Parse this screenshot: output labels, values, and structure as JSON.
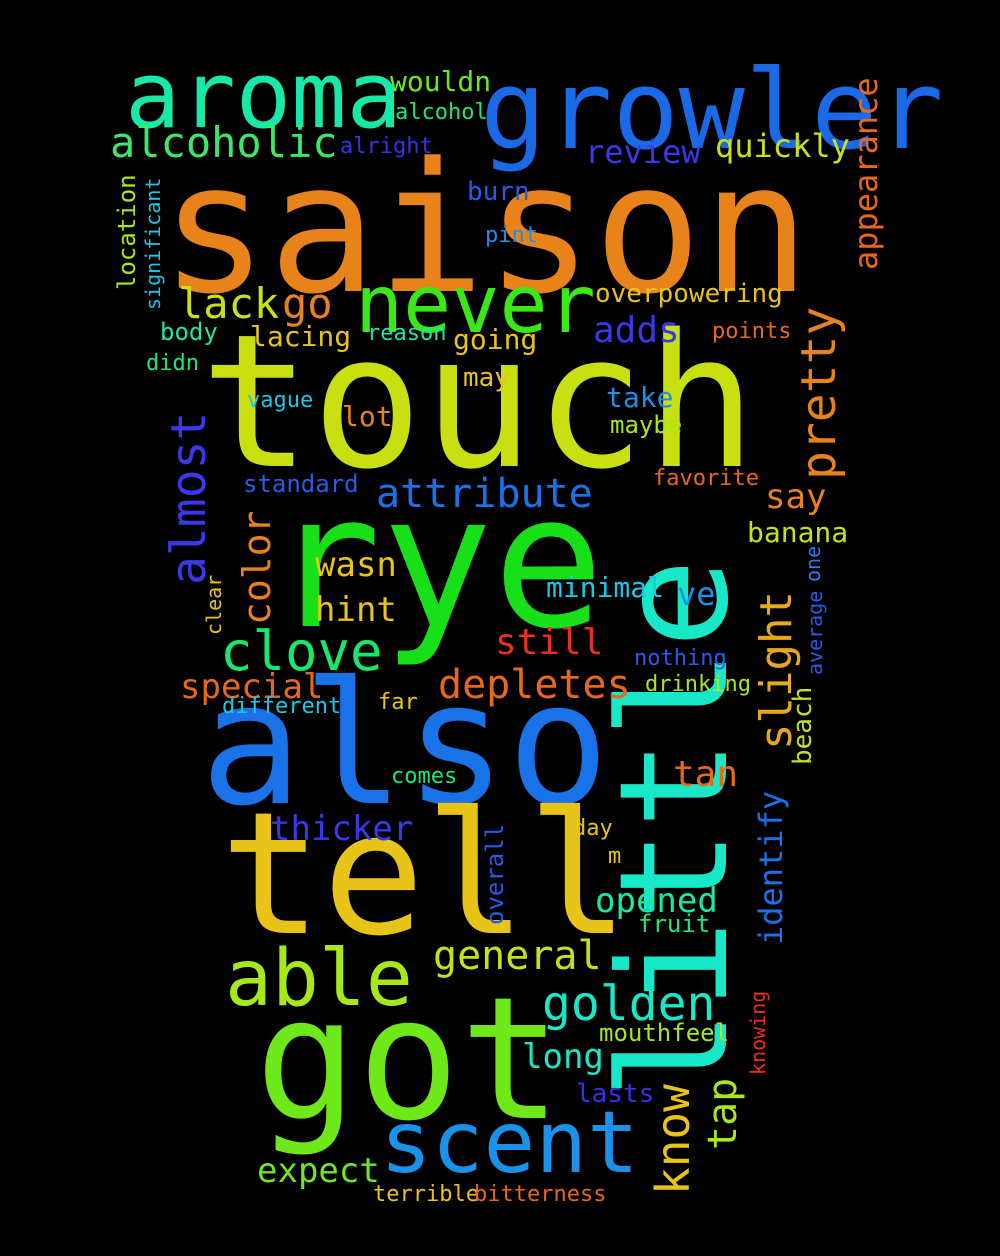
{
  "words": [
    {
      "id": "saison",
      "text": "saison",
      "color": "#e8821a"
    },
    {
      "id": "touch",
      "text": "touch",
      "color": "#c8e012"
    },
    {
      "id": "rye",
      "text": "rye",
      "color": "#18e018"
    },
    {
      "id": "also",
      "text": "also",
      "color": "#1a72e8"
    },
    {
      "id": "tell",
      "text": "tell",
      "color": "#e8c418"
    },
    {
      "id": "got",
      "text": "got",
      "color": "#6ee818"
    },
    {
      "id": "little",
      "text": "little",
      "color": "#18e8c8"
    },
    {
      "id": "growler",
      "text": "growler",
      "color": "#1a6ae8"
    },
    {
      "id": "aroma",
      "text": "aroma",
      "color": "#18e8a8"
    },
    {
      "id": "never",
      "text": "never",
      "color": "#3ae818"
    },
    {
      "id": "scent",
      "text": "scent",
      "color": "#1a92e8"
    },
    {
      "id": "able",
      "text": "able",
      "color": "#a8e818"
    },
    {
      "id": "alcoholic",
      "text": "alcoholic",
      "color": "#3ae86a"
    },
    {
      "id": "wouldn",
      "text": "wouldn",
      "color": "#6ae818"
    },
    {
      "id": "alcohol",
      "text": "alcohol",
      "color": "#18e878"
    },
    {
      "id": "alright",
      "text": "alright",
      "color": "#3a30e8"
    },
    {
      "id": "review",
      "text": "review",
      "color": "#3a38e8"
    },
    {
      "id": "quickly",
      "text": "quickly",
      "color": "#c8e018"
    },
    {
      "id": "appearance",
      "text": "appearance",
      "color": "#e8681a"
    },
    {
      "id": "burn",
      "text": "burn",
      "color": "#2a5ae8"
    },
    {
      "id": "pint",
      "text": "pint",
      "color": "#1a92e8"
    },
    {
      "id": "location",
      "text": "location",
      "color": "#a8e818"
    },
    {
      "id": "significant",
      "text": "significant",
      "color": "#18c8e8"
    },
    {
      "id": "lack",
      "text": "lack",
      "color": "#c8e018"
    },
    {
      "id": "go",
      "text": "go",
      "color": "#e8821a"
    },
    {
      "id": "pretty",
      "text": "pretty",
      "color": "#e8821a"
    },
    {
      "id": "overpowering",
      "text": "overpowering",
      "color": "#e8c418"
    },
    {
      "id": "body",
      "text": "body",
      "color": "#18e8a8"
    },
    {
      "id": "lacing",
      "text": "lacing",
      "color": "#e8c418"
    },
    {
      "id": "reason",
      "text": "reason",
      "color": "#18e8a8"
    },
    {
      "id": "adds",
      "text": "adds",
      "color": "#3a38e8"
    },
    {
      "id": "points",
      "text": "points",
      "color": "#e8681a"
    },
    {
      "id": "going",
      "text": "going",
      "color": "#e8c418"
    },
    {
      "id": "didn",
      "text": "didn",
      "color": "#18e878"
    },
    {
      "id": "may",
      "text": "may",
      "color": "#e8c418"
    },
    {
      "id": "almost",
      "text": "almost",
      "color": "#3a38e8"
    },
    {
      "id": "vague",
      "text": "vague",
      "color": "#18c8e8"
    },
    {
      "id": "lot",
      "text": "lot",
      "color": "#e8821a"
    },
    {
      "id": "take",
      "text": "take",
      "color": "#1a92e8"
    },
    {
      "id": "maybe",
      "text": "maybe",
      "color": "#a8e818"
    },
    {
      "id": "standard",
      "text": "standard",
      "color": "#2a5ae8"
    },
    {
      "id": "attribute",
      "text": "attribute",
      "color": "#1a72e8"
    },
    {
      "id": "favorite",
      "text": "favorite",
      "color": "#e8681a"
    },
    {
      "id": "say",
      "text": "say",
      "color": "#e8821a"
    },
    {
      "id": "color",
      "text": "color",
      "color": "#e8821a"
    },
    {
      "id": "banana",
      "text": "banana",
      "color": "#c8e018"
    },
    {
      "id": "wasn",
      "text": "wasn",
      "color": "#e8c418"
    },
    {
      "id": "slight",
      "text": "slight",
      "color": "#e8a818"
    },
    {
      "id": "clove",
      "text": "clove",
      "color": "#18e86a"
    },
    {
      "id": "hint",
      "text": "hint",
      "color": "#e8c418"
    },
    {
      "id": "minimal",
      "text": "minimal",
      "color": "#18c8e8"
    },
    {
      "id": "ve",
      "text": "ve",
      "color": "#1a92e8"
    },
    {
      "id": "one",
      "text": "one",
      "color": "#2a7ae8"
    },
    {
      "id": "clear",
      "text": "clear",
      "color": "#e8c418"
    },
    {
      "id": "average",
      "text": "average",
      "color": "#2a5ae8"
    },
    {
      "id": "still",
      "text": "still",
      "color": "#e8301a"
    },
    {
      "id": "nothing",
      "text": "nothing",
      "color": "#2a5ae8"
    },
    {
      "id": "special",
      "text": "special",
      "color": "#e8681a"
    },
    {
      "id": "depletes",
      "text": "depletes",
      "color": "#e8681a"
    },
    {
      "id": "drinking",
      "text": "drinking",
      "color": "#a8e818"
    },
    {
      "id": "different",
      "text": "different",
      "color": "#18c8e8"
    },
    {
      "id": "far",
      "text": "far",
      "color": "#e8c418"
    },
    {
      "id": "beach",
      "text": "beach",
      "color": "#c8e018"
    },
    {
      "id": "tan",
      "text": "tan",
      "color": "#e8681a"
    },
    {
      "id": "comes",
      "text": "comes",
      "color": "#18e878"
    },
    {
      "id": "identify",
      "text": "identify",
      "color": "#1a72e8"
    },
    {
      "id": "thicker",
      "text": "thicker",
      "color": "#3a38e8"
    },
    {
      "id": "day",
      "text": "day",
      "color": "#e8c418"
    },
    {
      "id": "overall",
      "text": "overall",
      "color": "#2a5ae8"
    },
    {
      "id": "m",
      "text": "m",
      "color": "#e8c418"
    },
    {
      "id": "opened",
      "text": "opened",
      "color": "#18e8a8"
    },
    {
      "id": "fruit",
      "text": "fruit",
      "color": "#18e878"
    },
    {
      "id": "general",
      "text": "general",
      "color": "#c8e018"
    },
    {
      "id": "golden",
      "text": "golden",
      "color": "#18e8c8"
    },
    {
      "id": "knowing",
      "text": "knowing",
      "color": "#e8301a"
    },
    {
      "id": "mouthfeel",
      "text": "mouthfeel",
      "color": "#a8e818"
    },
    {
      "id": "know",
      "text": "know",
      "color": "#e8c418"
    },
    {
      "id": "long",
      "text": "long",
      "color": "#18e8c8"
    },
    {
      "id": "tap",
      "text": "tap",
      "color": "#a8e818"
    },
    {
      "id": "lasts",
      "text": "lasts",
      "color": "#3a30e8"
    },
    {
      "id": "expect",
      "text": "expect",
      "color": "#6ee818"
    },
    {
      "id": "terrible",
      "text": "terrible",
      "color": "#e8c418"
    },
    {
      "id": "bitterness",
      "text": "bitterness",
      "color": "#e8681a"
    }
  ]
}
